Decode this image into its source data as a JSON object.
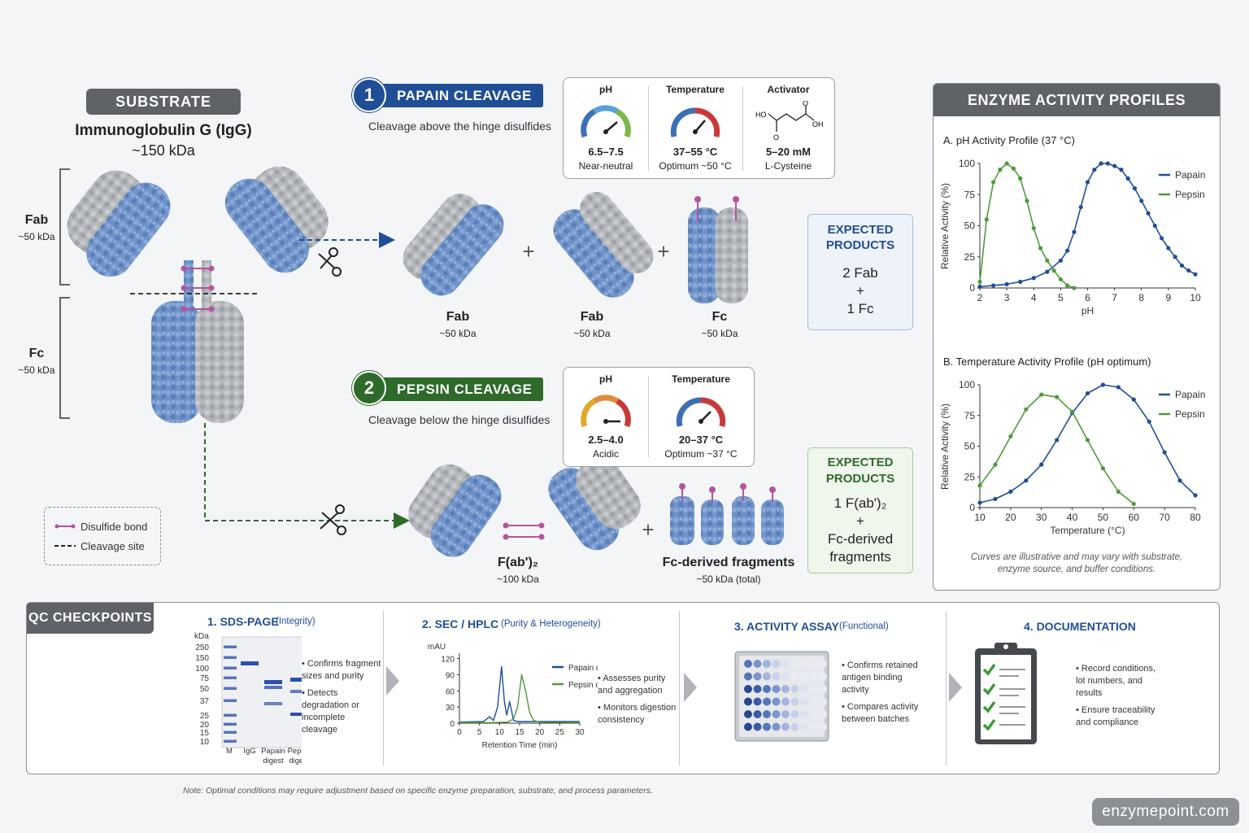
{
  "substrate": {
    "header": "SUBSTRATE",
    "name": "Immunoglobulin G (IgG)",
    "mass": "~150 kDa",
    "fab_label": "Fab",
    "fab_mass": "~50 kDa",
    "fc_label": "Fc",
    "fc_mass": "~50 kDa"
  },
  "legend": {
    "disulfide": "Disulfide bond",
    "cleavage": "Cleavage site"
  },
  "papain": {
    "number": "1",
    "title": "PAPAIN CLEAVAGE",
    "subtitle": "Cleavage above the hinge disulfides",
    "conditions": {
      "ph_label": "pH",
      "ph_value": "6.5–7.5",
      "ph_note": "Near-neutral",
      "temp_label": "Temperature",
      "temp_value": "37–55 °C",
      "temp_note": "Optimum ~50 °C",
      "activator_label": "Activator",
      "activator_value": "5–20 mM",
      "activator_note": "L-Cysteine",
      "mol_ho": "HO",
      "mol_o1": "O",
      "mol_o2": "O",
      "mol_oh": "OH"
    },
    "products": [
      {
        "name": "Fab",
        "mass": "~50 kDa"
      },
      {
        "name": "Fab",
        "mass": "~50 kDa"
      },
      {
        "name": "Fc",
        "mass": "~50 kDa"
      }
    ],
    "plus": "+",
    "expected": {
      "title1": "EXPECTED",
      "title2": "PRODUCTS",
      "line1": "2 Fab",
      "line2": "+",
      "line3": "1 Fc"
    }
  },
  "pepsin": {
    "number": "2",
    "title": "PEPSIN CLEAVAGE",
    "subtitle": "Cleavage below the hinge disulfides",
    "conditions": {
      "ph_label": "pH",
      "ph_value": "2.5–4.0",
      "ph_note": "Acidic",
      "temp_label": "Temperature",
      "temp_value": "20–37 °C",
      "temp_note": "Optimum ~37 °C"
    },
    "products": [
      {
        "name": "F(ab')₂",
        "mass": "~100 kDa"
      },
      {
        "name": "Fc-derived fragments",
        "mass": "~50 kDa (total)"
      }
    ],
    "plus": "+",
    "expected": {
      "title1": "EXPECTED",
      "title2": "PRODUCTS",
      "line1": "1 F(ab')₂",
      "line2": "+",
      "line3": "Fc-derived",
      "line4": "fragments"
    }
  },
  "profiles": {
    "header": "ENZYME ACTIVITY PROFILES",
    "note_line1": "Curves are illustrative and may vary with substrate,",
    "note_line2": "enzyme source, and buffer conditions."
  },
  "chart_data": [
    {
      "type": "line",
      "title": "A.  pH Activity Profile (37 °C)",
      "xlabel": "pH",
      "ylabel": "Relative Activity (%)",
      "xlim": [
        2,
        10
      ],
      "ylim": [
        0,
        100
      ],
      "xticks": [
        2,
        3,
        4,
        5,
        6,
        7,
        8,
        9,
        10
      ],
      "yticks": [
        0,
        25,
        50,
        75,
        100
      ],
      "legend": "top-right",
      "series": [
        {
          "name": "Papain",
          "color": "#1f4e96",
          "x": [
            2,
            2.5,
            3,
            3.5,
            4,
            4.5,
            5,
            5.25,
            5.5,
            5.75,
            6,
            6.25,
            6.5,
            6.75,
            7,
            7.25,
            7.5,
            7.75,
            8,
            8.25,
            8.5,
            8.75,
            9,
            9.25,
            9.5,
            9.75,
            10
          ],
          "y": [
            1,
            2,
            3,
            5,
            8,
            13,
            22,
            30,
            45,
            65,
            85,
            95,
            100,
            100,
            98,
            95,
            88,
            80,
            70,
            60,
            50,
            40,
            32,
            25,
            18,
            14,
            11
          ]
        },
        {
          "name": "Pepsin",
          "color": "#4e9a3a",
          "x": [
            2,
            2.25,
            2.5,
            2.75,
            3,
            3.25,
            3.5,
            3.75,
            4,
            4.25,
            4.5,
            4.75,
            5,
            5.25,
            5.5
          ],
          "y": [
            5,
            55,
            85,
            95,
            100,
            96,
            88,
            70,
            48,
            32,
            22,
            14,
            7,
            2,
            0
          ]
        }
      ]
    },
    {
      "type": "line",
      "title": "B.  Temperature Activity Profile (pH optimum)",
      "xlabel": "Temperature (°C)",
      "ylabel": "Relative Activity (%)",
      "xlim": [
        10,
        80
      ],
      "ylim": [
        0,
        100
      ],
      "xticks": [
        10,
        20,
        30,
        40,
        50,
        60,
        70,
        80
      ],
      "yticks": [
        0,
        25,
        50,
        75,
        100
      ],
      "legend": "top-right",
      "series": [
        {
          "name": "Papain",
          "color": "#1f4e96",
          "x": [
            10,
            15,
            20,
            25,
            30,
            35,
            40,
            45,
            50,
            55,
            60,
            65,
            70,
            75,
            80
          ],
          "y": [
            4,
            7,
            13,
            22,
            35,
            55,
            77,
            93,
            100,
            98,
            88,
            70,
            45,
            22,
            10
          ]
        },
        {
          "name": "Pepsin",
          "color": "#4e9a3a",
          "x": [
            10,
            15,
            20,
            25,
            30,
            35,
            40,
            45,
            50,
            55,
            60
          ],
          "y": [
            18,
            35,
            58,
            80,
            92,
            90,
            78,
            55,
            32,
            13,
            3
          ]
        }
      ]
    },
    {
      "type": "line",
      "title": "2. SEC / HPLC",
      "xlabel": "Retention Time (min)",
      "ylabel": "mAU",
      "xlim": [
        0,
        30
      ],
      "ylim": [
        0,
        130
      ],
      "xticks": [
        0,
        5,
        10,
        15,
        20,
        25,
        30
      ],
      "yticks": [
        0,
        30,
        60,
        90,
        120
      ],
      "legend": "top-right",
      "series": [
        {
          "name": "Papain digest",
          "color": "#1f4e96",
          "x": [
            0,
            6,
            7.5,
            8.5,
            9.5,
            10.5,
            11.2,
            11.8,
            12.5,
            13.5,
            14.5,
            16,
            30
          ],
          "y": [
            2,
            3,
            12,
            5,
            30,
            105,
            40,
            15,
            40,
            5,
            3,
            3,
            3
          ]
        },
        {
          "name": "Pepsin digest",
          "color": "#4e9a3a",
          "x": [
            0,
            8,
            12,
            13.5,
            14.5,
            15.5,
            16.5,
            17.5,
            18.5,
            20,
            30
          ],
          "y": [
            1,
            1,
            2,
            8,
            30,
            90,
            60,
            20,
            5,
            2,
            1
          ]
        }
      ]
    }
  ],
  "qc": {
    "header": "QC CHECKPOINTS",
    "sds": {
      "title": "1. SDS-PAGE",
      "subtitle": "(Integrity)",
      "unit": "kDa",
      "ladder": [
        "250",
        "150",
        "100",
        "75",
        "50",
        "37",
        "25",
        "20",
        "15",
        "10"
      ],
      "lanes": [
        "M",
        "IgG",
        "Papain digest",
        "Pepsin digest"
      ],
      "bullet1": "Confirms fragment sizes and purity",
      "bullet2": "Detects degradation or incomplete cleavage"
    },
    "sec": {
      "title": "2. SEC / HPLC",
      "subtitle": "(Purity & Heterogeneity)",
      "bullet1": "Assesses purity and aggregation",
      "bullet2": "Monitors digestion consistency"
    },
    "assay": {
      "title": "3.  ACTIVITY ASSAY",
      "subtitle": "(Functional)",
      "bullet1": "Confirms retained antigen binding activity",
      "bullet2": "Compares activity between batches"
    },
    "doc": {
      "title": "4.  DOCUMENTATION",
      "bullet1": "Record conditions, lot numbers, and results",
      "bullet2": "Ensure traceability and compliance"
    }
  },
  "footer": {
    "note": "Note: Optimal conditions may require adjustment based on specific enzyme preparation, substrate, and process parameters.",
    "watermark": "enzymepoint.com"
  },
  "colors": {
    "blue": "#1f4e96",
    "green": "#2e6b2b",
    "protein_blue": "#6f93c9",
    "protein_gray": "#b4b7bb",
    "disulfide": "#b4559e"
  }
}
